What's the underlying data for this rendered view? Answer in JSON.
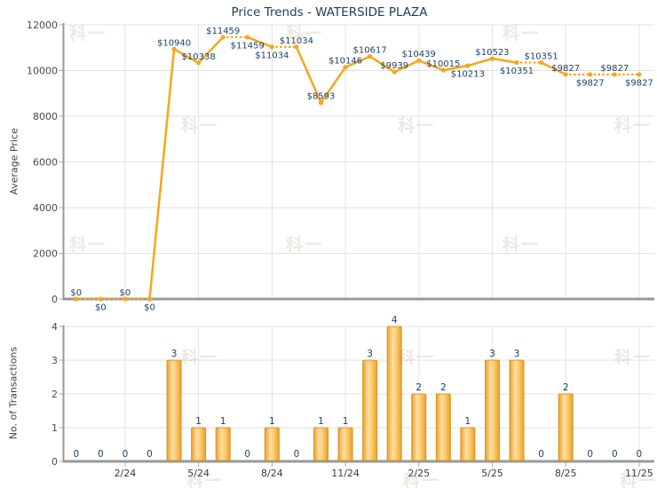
{
  "title": "Price Trends - WATERSIDE PLAZA",
  "watermark": "科一",
  "colors": {
    "line": "#F9A51B",
    "marker": "#F9A51B",
    "bar_edge": "#D8951F",
    "bar_dark": "#EC9F28",
    "bar_light": "#FFDFA3",
    "bar_mid": "#FCCE77",
    "point_label": "#1F4066",
    "title": "#1E3D58",
    "tick_label": "#3C3C3C",
    "grid": "#E2E2E2",
    "spine": "#989898",
    "tick_mark": "#ADADAD"
  },
  "x_axis": {
    "tick_labels": [
      "2/24",
      "5/24",
      "8/24",
      "11/24",
      "2/25",
      "5/25",
      "8/25",
      "11/25"
    ],
    "tick_point_indices": [
      2,
      5,
      8,
      11,
      14,
      17,
      20,
      23
    ]
  },
  "chart_data": [
    {
      "type": "line",
      "name": "average-price",
      "title": "Price Trends - WATERSIDE PLAZA",
      "ylabel": "Average Price",
      "ylim": [
        0,
        12000
      ],
      "yticks": [
        0,
        2000,
        4000,
        6000,
        8000,
        10000,
        12000
      ],
      "grid": true,
      "legend": "none",
      "values": [
        0,
        0,
        0,
        0,
        10940,
        10338,
        11459,
        11459,
        11034,
        11034,
        8593,
        10146,
        10617,
        9939,
        10439,
        10015,
        10213,
        10523,
        10351,
        10351,
        9827,
        9827,
        9827,
        9827
      ],
      "point_label_prefix": "$",
      "label_side": [
        "above",
        "below",
        "above",
        "below",
        "above",
        "above",
        "above",
        "below",
        "below",
        "above",
        "above",
        "above",
        "above",
        "above",
        "above",
        "above",
        "below",
        "above",
        "below",
        "above",
        "above",
        "below",
        "above",
        "below"
      ],
      "dotted_segment_rule": "segment drawn dotted when transactions at right endpoint is 0"
    },
    {
      "type": "bar",
      "name": "transactions",
      "ylabel": "No. of Transactions",
      "ylim": [
        0,
        4
      ],
      "yticks": [
        0,
        1,
        2,
        3,
        4
      ],
      "grid": true,
      "legend": "none",
      "values": [
        0,
        0,
        0,
        0,
        3,
        1,
        1,
        0,
        1,
        0,
        1,
        1,
        3,
        4,
        2,
        2,
        1,
        3,
        3,
        0,
        2,
        0,
        0,
        0
      ]
    }
  ]
}
